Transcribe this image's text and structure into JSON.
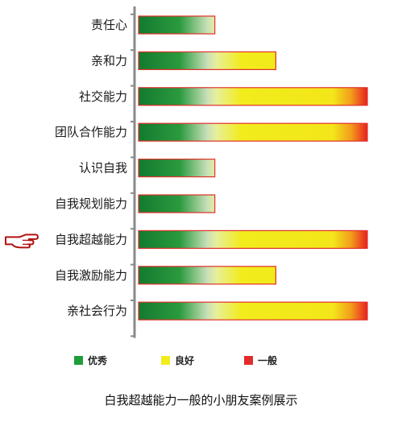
{
  "chart_data": {
    "type": "bar",
    "orientation": "horizontal",
    "categories": [
      "责任心",
      "亲和力",
      "社交能力",
      "团队合作能力",
      "认识自我",
      "自我规划能力",
      "自我超越能力",
      "自我激励能力",
      "亲社会行为"
    ],
    "values": [
      1.0,
      1.8,
      3.0,
      3.0,
      1.0,
      1.0,
      3.0,
      1.8,
      3.0
    ],
    "xlim": [
      0,
      3
    ],
    "highlighted_category": "自我超越能力",
    "legend": {
      "placement": "bottom",
      "items": [
        {
          "label": "优秀",
          "color": "#1e9e3b"
        },
        {
          "label": "良好",
          "color": "#f2ec1c"
        },
        {
          "label": "一般",
          "color": "#e32b2b"
        }
      ]
    },
    "bar_gradient": [
      "#137a2f",
      "#2a9a3e",
      "#f0ea1a",
      "#e8201f"
    ],
    "bar_border_color": "#e0302a",
    "axis_color": "#8a8a8a"
  },
  "caption": "白我超越能力一般的小朋友案例展示",
  "pointer_icon": "pointing-hand-icon"
}
